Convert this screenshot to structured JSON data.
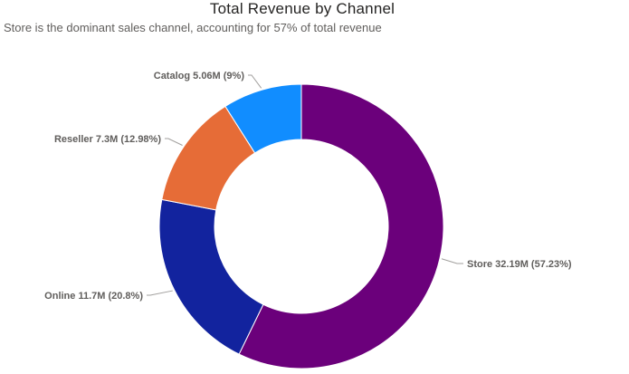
{
  "chart_data": {
    "type": "pie",
    "title": "Total Revenue by Channel",
    "subtitle": "Store is the dominant sales channel, accounting for 57% of total revenue",
    "donut": true,
    "slices": [
      {
        "label": "Store",
        "value": 32.19,
        "value_text": "32.19M",
        "percent_text": "57.23%",
        "color": "#6B007B"
      },
      {
        "label": "Online",
        "value": 11.7,
        "value_text": "11.7M",
        "percent_text": "20.8%",
        "color": "#12239E"
      },
      {
        "label": "Reseller",
        "value": 7.3,
        "value_text": "7.3M",
        "percent_text": "12.98%",
        "color": "#E66C37"
      },
      {
        "label": "Catalog",
        "value": 5.06,
        "value_text": "5.06M",
        "percent_text": "9%",
        "color": "#118DFF"
      }
    ]
  }
}
